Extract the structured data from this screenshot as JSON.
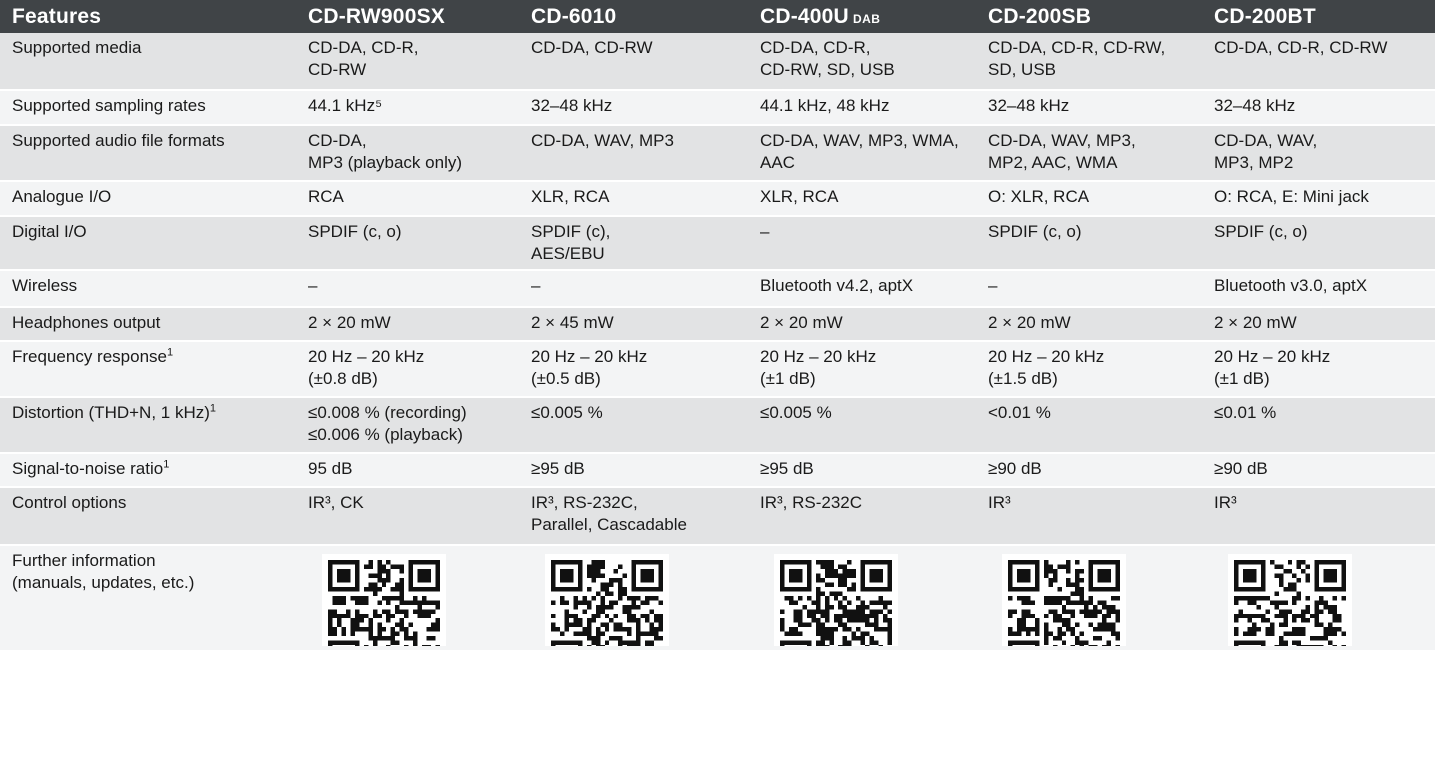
{
  "table": {
    "headers": [
      "Features",
      "CD-RW900SX",
      "CD-6010",
      "CD-400U",
      "CD-200SB",
      "CD-200BT"
    ],
    "header_suffix_cd400u": "DAB",
    "rows": [
      {
        "feature": "Supported media",
        "feature_sup": "",
        "cells": [
          [
            "CD-DA, CD-R,",
            "CD-RW"
          ],
          [
            "CD-DA, CD-RW"
          ],
          [
            "CD-DA, CD-R,",
            "CD-RW, SD, USB"
          ],
          [
            "CD-DA, CD-R, CD-RW,",
            "SD, USB"
          ],
          [
            "CD-DA, CD-R, CD-RW"
          ]
        ]
      },
      {
        "feature": "Supported sampling rates",
        "feature_sup": "",
        "cells": [
          [
            "44.1 kHz⁵"
          ],
          [
            "32–48 kHz"
          ],
          [
            "44.1 kHz, 48 kHz"
          ],
          [
            "32–48 kHz"
          ],
          [
            "32–48 kHz"
          ]
        ]
      },
      {
        "feature": "Supported audio file formats",
        "feature_sup": "",
        "cells": [
          [
            "CD-DA,",
            "MP3 (playback only)"
          ],
          [
            "CD-DA, WAV, MP3"
          ],
          [
            "CD-DA, WAV, MP3, WMA,",
            "AAC"
          ],
          [
            "CD-DA, WAV, MP3,",
            "MP2, AAC, WMA"
          ],
          [
            "CD-DA, WAV,",
            "MP3, MP2"
          ]
        ]
      },
      {
        "feature": "Analogue I/O",
        "feature_sup": "",
        "cells": [
          [
            "RCA"
          ],
          [
            "XLR, RCA"
          ],
          [
            "XLR, RCA"
          ],
          [
            "O: XLR, RCA"
          ],
          [
            "O: RCA, E: Mini jack"
          ]
        ]
      },
      {
        "feature": "Digital I/O",
        "feature_sup": "",
        "cells": [
          [
            "SPDIF (c, o)"
          ],
          [
            "SPDIF (c),",
            "AES/EBU"
          ],
          [
            "–"
          ],
          [
            "SPDIF (c, o)"
          ],
          [
            "SPDIF (c, o)"
          ]
        ]
      },
      {
        "feature": "Wireless",
        "feature_sup": "",
        "cells": [
          [
            "–"
          ],
          [
            "–"
          ],
          [
            "Bluetooth v4.2, aptX"
          ],
          [
            "–"
          ],
          [
            "Bluetooth v3.0, aptX"
          ]
        ]
      },
      {
        "feature": "Headphones output",
        "feature_sup": "",
        "cells": [
          [
            "2 × 20 mW"
          ],
          [
            "2 × 45 mW"
          ],
          [
            "2 × 20 mW"
          ],
          [
            "2 × 20 mW"
          ],
          [
            "2 × 20 mW"
          ]
        ]
      },
      {
        "feature": "Frequency response",
        "feature_sup": "1",
        "cells": [
          [
            "20 Hz – 20 kHz",
            "(±0.8 dB)"
          ],
          [
            "20 Hz – 20 kHz",
            "(±0.5 dB)"
          ],
          [
            "20 Hz – 20 kHz",
            "(±1 dB)"
          ],
          [
            "20 Hz – 20 kHz",
            "(±1.5 dB)"
          ],
          [
            "20 Hz – 20 kHz",
            "(±1 dB)"
          ]
        ]
      },
      {
        "feature": "Distortion (THD+N, 1 kHz)",
        "feature_sup": "1",
        "cells": [
          [
            "≤0.008 % (recording)",
            "≤0.006 % (playback)"
          ],
          [
            "≤0.005 %"
          ],
          [
            "≤0.005 %"
          ],
          [
            "<0.01 %"
          ],
          [
            "≤0.01 %"
          ]
        ]
      },
      {
        "feature": "Signal-to-noise ratio",
        "feature_sup": "1",
        "cells": [
          [
            "95 dB"
          ],
          [
            "≥95 dB"
          ],
          [
            "≥95 dB"
          ],
          [
            "≥90 dB"
          ],
          [
            "≥90 dB"
          ]
        ]
      },
      {
        "feature": "Control options",
        "feature_sup": "",
        "cells": [
          [
            "IR³, CK"
          ],
          [
            "IR³, RS-232C,",
            "Parallel, Cascadable"
          ],
          [
            "IR³, RS-232C"
          ],
          [
            "IR³"
          ],
          [
            "IR³"
          ]
        ]
      }
    ],
    "further_info": [
      "Further information",
      "(manuals, updates, etc.)"
    ],
    "qr_icons": [
      "qr-code-icon",
      "qr-code-icon",
      "qr-code-icon",
      "qr-code-icon",
      "qr-code-icon"
    ]
  }
}
